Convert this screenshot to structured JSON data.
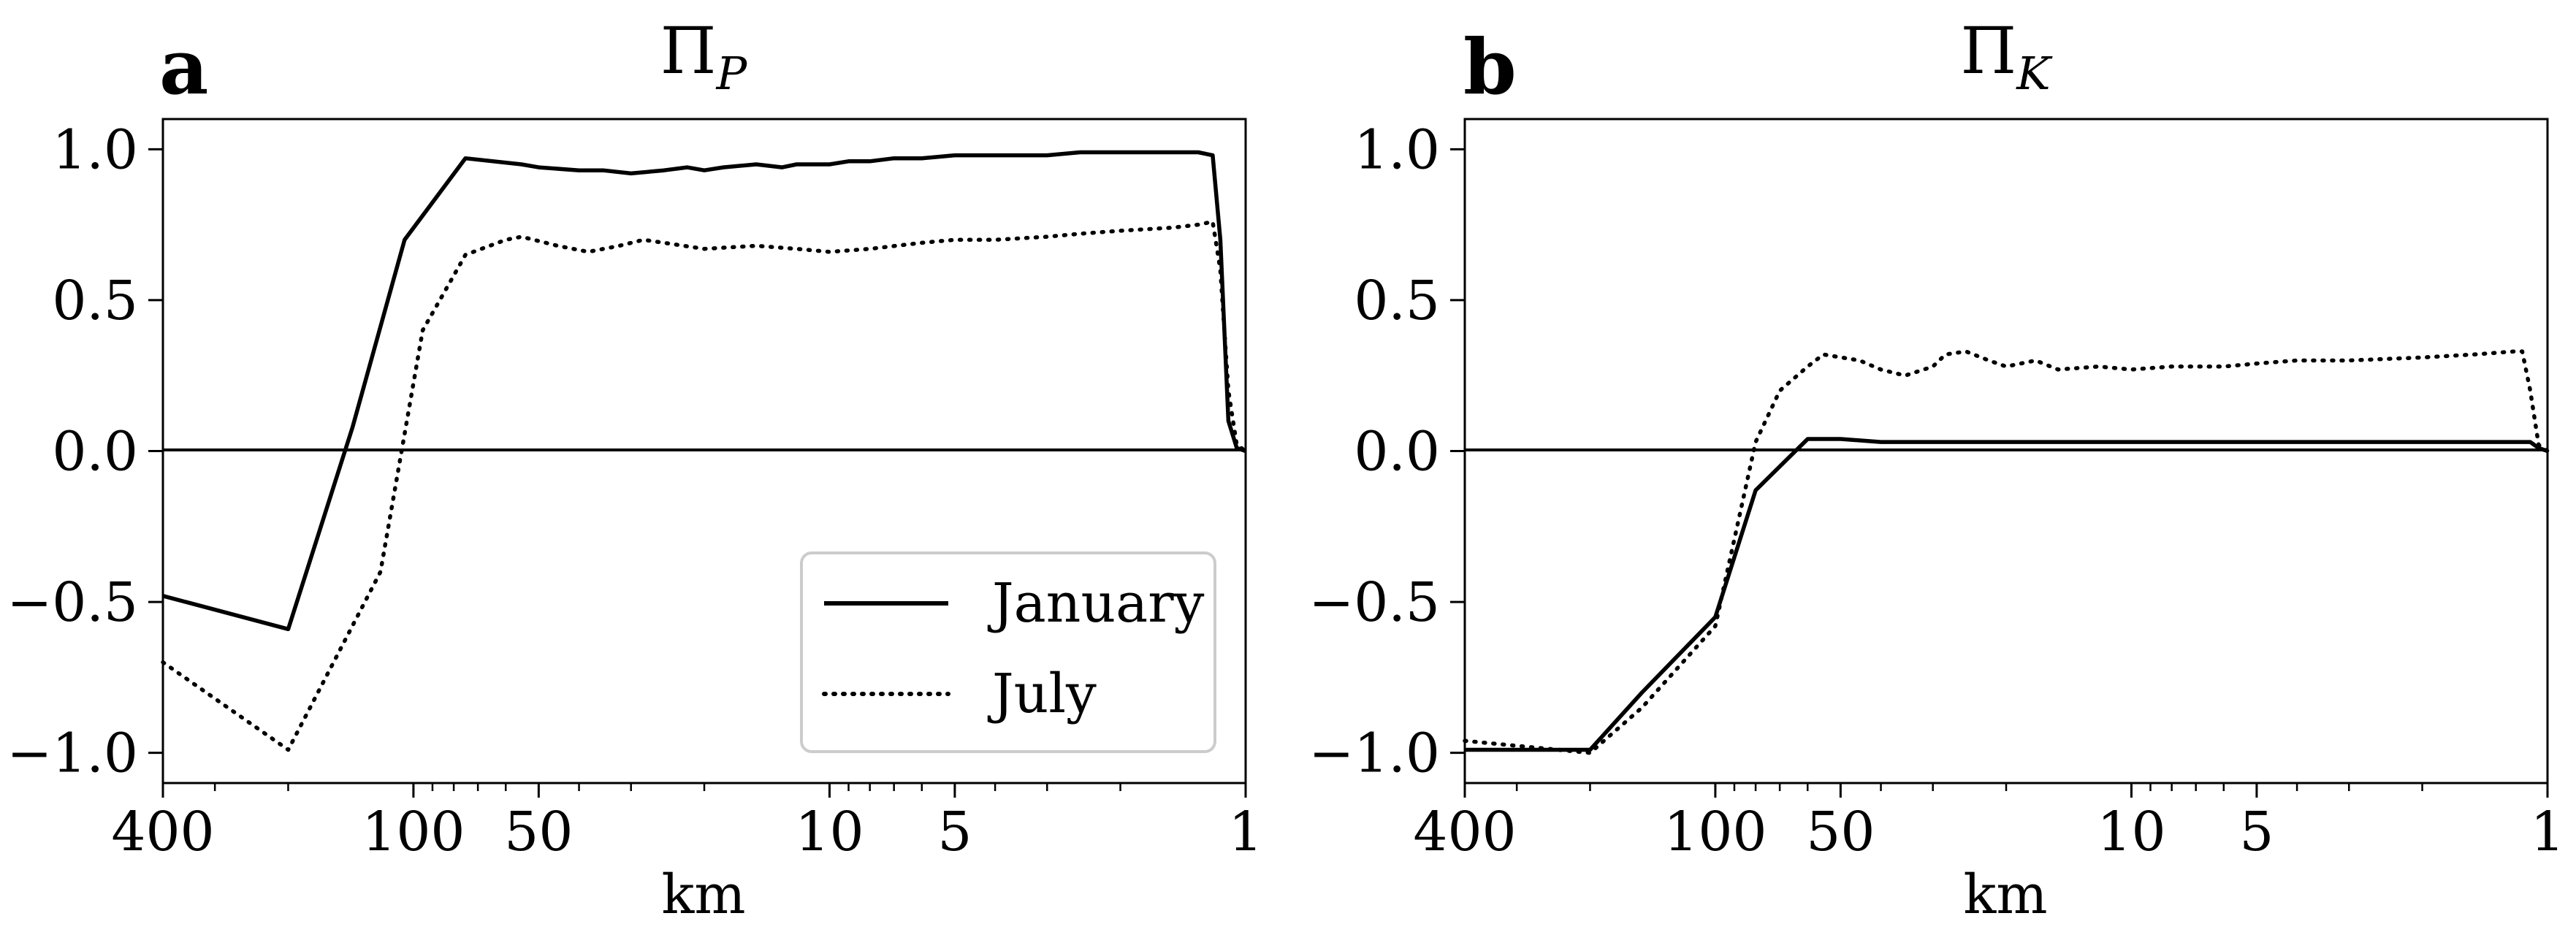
{
  "chart_data": [
    {
      "type": "line",
      "panel_label": "a",
      "title": "Π_P",
      "xlabel": "km",
      "ylabel": "",
      "x_scale": "log",
      "x_reversed": true,
      "xlim": [
        400,
        1
      ],
      "ylim": [
        -1.1,
        1.1
      ],
      "x_tick_labels": [
        "400",
        "100",
        "50",
        "10",
        "5",
        "1"
      ],
      "y_tick_labels": [
        "1.0",
        "0.5",
        "0.0",
        "−0.5",
        "−1.0"
      ],
      "grid": false,
      "zero_line": true,
      "legend": {
        "placement": "lower-right",
        "entries": [
          "January",
          "July"
        ]
      },
      "series": [
        {
          "name": "January",
          "style": "solid",
          "color": "#000000",
          "x": [
            400,
            200,
            140,
            105,
            75,
            55,
            50,
            40,
            35,
            30,
            25,
            22,
            20,
            18,
            15,
            13,
            12,
            11,
            10,
            9,
            8,
            7,
            6,
            5,
            4,
            3,
            2.5,
            2,
            1.5,
            1.3,
            1.2,
            1.15,
            1.1,
            1.05,
            1.0
          ],
          "y": [
            -0.48,
            -0.59,
            0.08,
            0.7,
            0.97,
            0.95,
            0.94,
            0.93,
            0.93,
            0.92,
            0.93,
            0.94,
            0.93,
            0.94,
            0.95,
            0.94,
            0.95,
            0.95,
            0.95,
            0.96,
            0.96,
            0.97,
            0.97,
            0.98,
            0.98,
            0.98,
            0.99,
            0.99,
            0.99,
            0.99,
            0.98,
            0.7,
            0.1,
            0.01,
            0.0
          ]
        },
        {
          "name": "July",
          "style": "dotted",
          "color": "#000000",
          "x": [
            400,
            200,
            120,
            95,
            75,
            60,
            55,
            45,
            38,
            32,
            28,
            25,
            20,
            15,
            12,
            10,
            8,
            6,
            5,
            4,
            3,
            2.5,
            2,
            1.5,
            1.3,
            1.2,
            1.15,
            1.1,
            1.05,
            1.0
          ],
          "y": [
            -0.7,
            -0.99,
            -0.4,
            0.4,
            0.65,
            0.7,
            0.71,
            0.68,
            0.66,
            0.68,
            0.7,
            0.69,
            0.67,
            0.68,
            0.67,
            0.66,
            0.67,
            0.69,
            0.7,
            0.7,
            0.71,
            0.72,
            0.73,
            0.74,
            0.75,
            0.76,
            0.6,
            0.2,
            0.02,
            0.0
          ]
        }
      ]
    },
    {
      "type": "line",
      "panel_label": "b",
      "title": "Π_K",
      "xlabel": "km",
      "ylabel": "",
      "x_scale": "log",
      "x_reversed": true,
      "xlim": [
        400,
        1
      ],
      "ylim": [
        -1.1,
        1.1
      ],
      "x_tick_labels": [
        "400",
        "100",
        "50",
        "10",
        "5",
        "1"
      ],
      "y_tick_labels": [
        "1.0",
        "0.5",
        "0.0",
        "−0.5",
        "−1.0"
      ],
      "grid": false,
      "zero_line": true,
      "series": [
        {
          "name": "January",
          "style": "solid",
          "color": "#000000",
          "x": [
            400,
            200,
            150,
            100,
            80,
            60,
            50,
            40,
            30,
            20,
            15,
            10,
            7,
            5,
            3,
            2,
            1.2,
            1.1,
            1.05,
            1.0
          ],
          "y": [
            -0.99,
            -0.99,
            -0.8,
            -0.55,
            -0.13,
            0.04,
            0.04,
            0.03,
            0.03,
            0.03,
            0.03,
            0.03,
            0.03,
            0.03,
            0.03,
            0.03,
            0.03,
            0.03,
            0.01,
            0.0
          ]
        },
        {
          "name": "July",
          "style": "dotted",
          "color": "#000000",
          "x": [
            400,
            200,
            150,
            100,
            80,
            70,
            60,
            55,
            45,
            40,
            35,
            30,
            28,
            25,
            22,
            20,
            17,
            15,
            12,
            10,
            8,
            6,
            5,
            4,
            3,
            2,
            1.5,
            1.2,
            1.15,
            1.1,
            1.05,
            1.0
          ],
          "y": [
            -0.96,
            -1.0,
            -0.85,
            -0.58,
            0.03,
            0.2,
            0.28,
            0.32,
            0.3,
            0.27,
            0.25,
            0.28,
            0.32,
            0.33,
            0.3,
            0.28,
            0.3,
            0.27,
            0.28,
            0.27,
            0.28,
            0.28,
            0.29,
            0.3,
            0.3,
            0.31,
            0.32,
            0.33,
            0.33,
            0.2,
            0.02,
            0.0
          ]
        }
      ]
    }
  ]
}
